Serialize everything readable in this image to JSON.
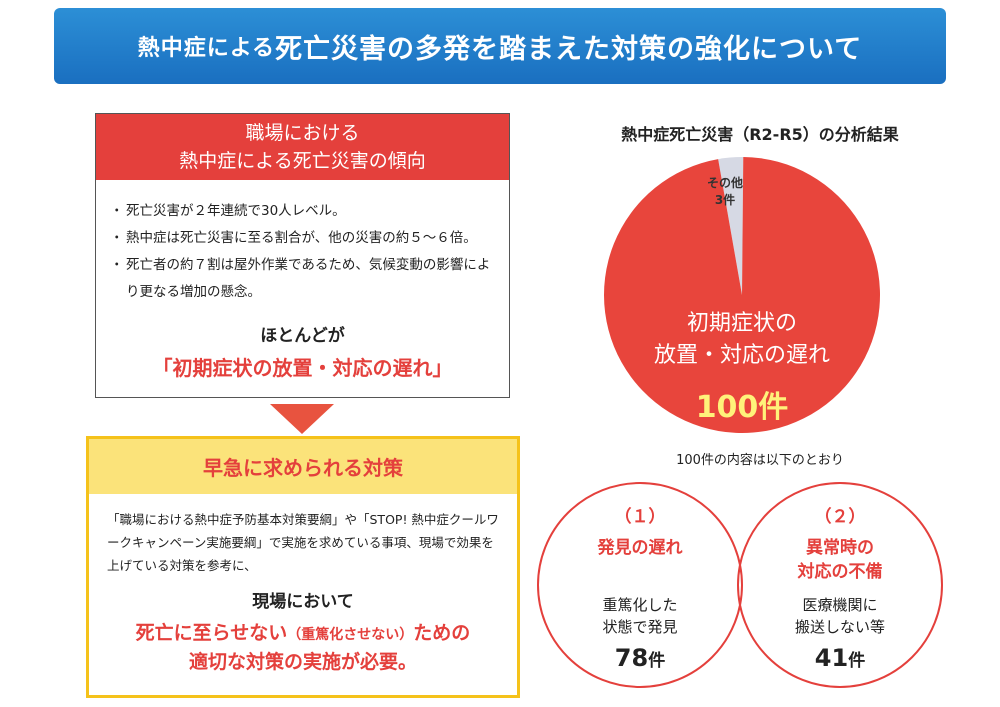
{
  "banner": {
    "prefix": "熱中症による",
    "main": "死亡災害の多発を踏まえた対策の強化について"
  },
  "tendency": {
    "head_line1": "職場における",
    "head_line2": "熱中症による死亡災害の傾向",
    "bullets": [
      "死亡災害が２年連続で30人レベル。",
      "熱中症は死亡災害に至る割合が、他の災害の約５～６倍。",
      "死亡者の約７割は屋外作業であるため、気候変動の影響により更なる増加の懸念。"
    ],
    "lead": "ほとんどが",
    "key": "「初期症状の放置・対応の遅れ」"
  },
  "measures": {
    "head": "早急に求められる対策",
    "para": "「職場における熱中症予防基本対策要綱」や「STOP! 熱中症クールワークキャンペーン実施要綱」で実施を求めている事項、現場で効果を上げている対策を参考に、",
    "place": "現場において",
    "must_a": "死亡に至らせない",
    "must_paren": "（重篤化させない）",
    "must_b": "ための",
    "must_line2": "適切な対策の実施が必要。"
  },
  "chart_data": {
    "type": "pie",
    "title": "熱中症死亡災害（R2-R5）の分析結果",
    "slices": [
      {
        "label": "初期症状の放置・対応の遅れ",
        "value": 100,
        "value_label": "100件",
        "color": "#e8453c"
      },
      {
        "label": "その他",
        "value": 3,
        "value_label": "3件",
        "color": "#d6d9e4"
      }
    ]
  },
  "pie_labels": {
    "other_line1": "その他",
    "other_line2": "3件",
    "main_line1": "初期症状の",
    "main_line2": "放置・対応の遅れ",
    "main_count": "100件"
  },
  "breakdown_note": "100件の内容は以下のとおり",
  "circles": [
    {
      "num": "（１）",
      "title_line1": "発見の遅れ",
      "title_line2": "",
      "desc_line1": "重篤化した",
      "desc_line2": "状態で発見",
      "count_num": "78",
      "count_unit": "件"
    },
    {
      "num": "（２）",
      "title_line1": "異常時の",
      "title_line2": "対応の不備",
      "desc_line1": "医療機関に",
      "desc_line2": "搬送しない等",
      "count_num": "41",
      "count_unit": "件"
    }
  ],
  "colors": {
    "accent_red": "#e4403c",
    "banner_blue": "#1a6fc0",
    "measure_yellow": "#f5c21a"
  }
}
